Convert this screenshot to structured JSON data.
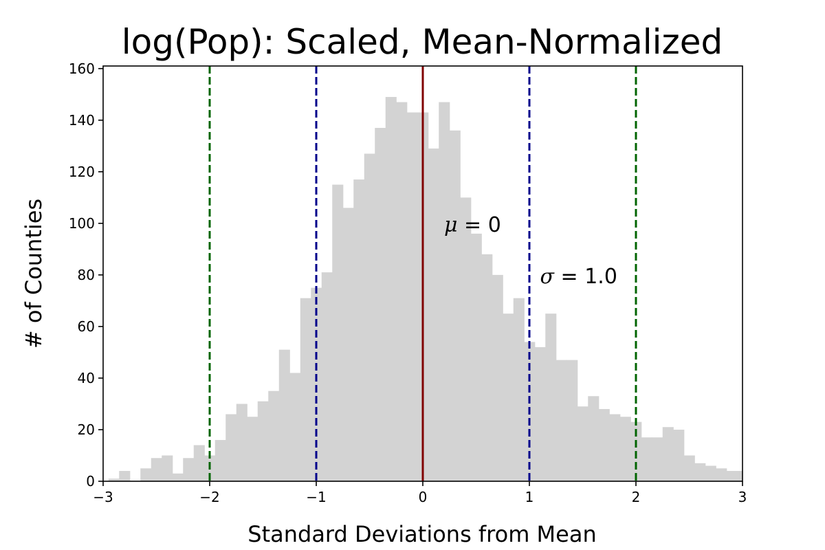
{
  "chart_data": {
    "type": "bar",
    "title": "log(Pop): Scaled, Mean-Normalized",
    "xlabel": "Standard Deviations from Mean",
    "ylabel": "# of Counties",
    "xlim": [
      -3,
      3
    ],
    "ylim": [
      0,
      161
    ],
    "x_ticks": [
      {
        "value": -3,
        "label": "−3"
      },
      {
        "value": -2,
        "label": "−2"
      },
      {
        "value": -1,
        "label": "−1"
      },
      {
        "value": 0,
        "label": "0"
      },
      {
        "value": 1,
        "label": "1"
      },
      {
        "value": 2,
        "label": "2"
      },
      {
        "value": 3,
        "label": "3"
      }
    ],
    "y_ticks": [
      {
        "value": 0,
        "label": "0"
      },
      {
        "value": 20,
        "label": "20"
      },
      {
        "value": 40,
        "label": "40"
      },
      {
        "value": 60,
        "label": "60"
      },
      {
        "value": 80,
        "label": "80"
      },
      {
        "value": 100,
        "label": "100"
      },
      {
        "value": 120,
        "label": "120"
      },
      {
        "value": 140,
        "label": "140"
      },
      {
        "value": 160,
        "label": "160"
      }
    ],
    "grid": false,
    "bar_color": "#d3d3d3",
    "bin_width": 0.1,
    "bins_start": [
      -2.95,
      -2.85,
      -2.75,
      -2.65,
      -2.55,
      -2.45,
      -2.35,
      -2.25,
      -2.15,
      -2.05,
      -1.95,
      -1.85,
      -1.75,
      -1.65,
      -1.55,
      -1.45,
      -1.35,
      -1.25,
      -1.15,
      -1.05,
      -0.95,
      -0.85,
      -0.75,
      -0.65,
      -0.55,
      -0.45,
      -0.35,
      -0.25,
      -0.15,
      -0.05,
      0.05,
      0.15,
      0.25,
      0.35,
      0.45,
      0.55,
      0.65,
      0.75,
      0.85,
      0.95,
      1.05,
      1.15,
      1.25,
      1.35,
      1.45,
      1.55,
      1.65,
      1.75,
      1.85,
      1.95,
      2.05,
      2.15,
      2.25,
      2.35,
      2.45,
      2.55,
      2.65,
      2.75,
      2.85,
      2.95
    ],
    "counts": [
      1,
      4,
      0,
      5,
      9,
      10,
      3,
      9,
      14,
      10,
      16,
      26,
      30,
      25,
      31,
      35,
      51,
      42,
      71,
      75,
      81,
      115,
      106,
      117,
      127,
      137,
      149,
      147,
      143,
      143,
      129,
      147,
      136,
      110,
      96,
      88,
      80,
      65,
      71,
      54,
      52,
      65,
      47,
      47,
      29,
      33,
      28,
      26,
      25,
      23,
      17,
      17,
      21,
      20,
      10,
      7,
      6,
      5,
      4,
      4
    ],
    "reference_lines": [
      {
        "x": 0,
        "color": "#800000",
        "style": "solid"
      },
      {
        "x": -1,
        "color": "#00008b",
        "style": "dashed"
      },
      {
        "x": 1,
        "color": "#00008b",
        "style": "dashed"
      },
      {
        "x": -2,
        "color": "#006400",
        "style": "dashed"
      },
      {
        "x": 2,
        "color": "#006400",
        "style": "dashed"
      }
    ],
    "annotations": [
      {
        "symbol": "μ",
        "text": " = 0",
        "x": 0.2,
        "y": 100
      },
      {
        "symbol": "σ",
        "text": " = 1.0",
        "x": 1.1,
        "y": 80
      }
    ]
  }
}
